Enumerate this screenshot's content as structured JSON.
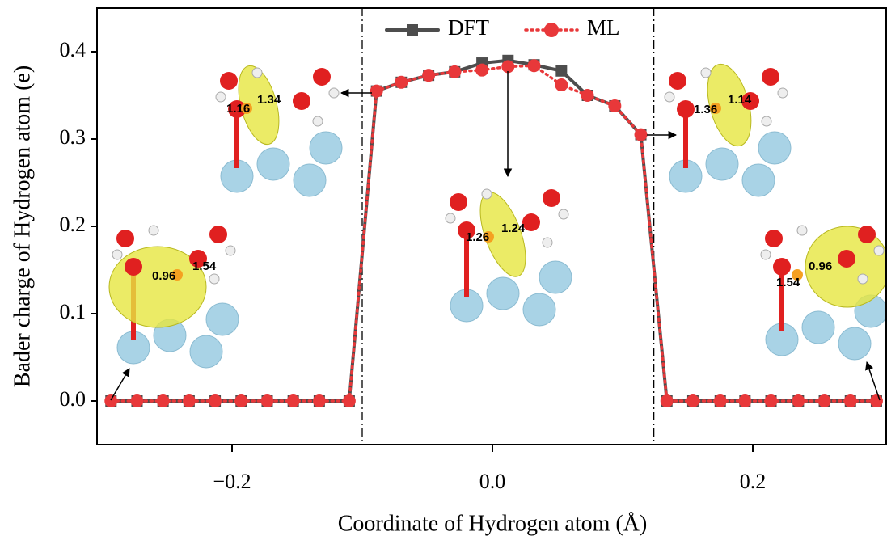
{
  "chart_data": {
    "type": "line",
    "x_label": "Coordinate of Hydrogen atom (Å)",
    "y_label": "Bader charge of Hydrogen atom (e)",
    "x": [
      -0.293,
      -0.273,
      -0.253,
      -0.233,
      -0.213,
      -0.193,
      -0.173,
      -0.153,
      -0.133,
      -0.11,
      -0.089,
      -0.07,
      -0.049,
      -0.029,
      -0.008,
      0.012,
      0.032,
      0.053,
      0.073,
      0.094,
      0.114,
      0.134,
      0.154,
      0.175,
      0.194,
      0.214,
      0.235,
      0.255,
      0.275,
      0.295
    ],
    "series": [
      {
        "name": "DFT",
        "color": "#4d4d4d",
        "marker": "square",
        "values": [
          0,
          0,
          0,
          0,
          0,
          0,
          0,
          0,
          0,
          0,
          0.355,
          0.365,
          0.373,
          0.377,
          0.387,
          0.39,
          0.385,
          0.378,
          0.35,
          0.338,
          0.305,
          0,
          0,
          0,
          0,
          0,
          0,
          0,
          0,
          0
        ]
      },
      {
        "name": "ML",
        "color": "#e8383a",
        "marker": "circle",
        "values": [
          0,
          0,
          0,
          0,
          0,
          0,
          0,
          0,
          0,
          0,
          0.355,
          0.365,
          0.373,
          0.377,
          0.379,
          0.383,
          0.384,
          0.362,
          0.35,
          0.338,
          0.305,
          0,
          0,
          0,
          0,
          0,
          0,
          0,
          0,
          0
        ]
      }
    ],
    "xlim": [
      -0.3,
      0.3
    ],
    "ylim": [
      -0.05,
      0.45
    ],
    "xticks": [
      {
        "value": -0.2,
        "label": "−0.2"
      },
      {
        "value": 0,
        "label": "0.0"
      },
      0.2
    ],
    "yticks": [
      {
        "value": 0,
        "label": "0.0"
      },
      0.1,
      0.2,
      0.3,
      0.4
    ],
    "reference_lines": [
      -0.1,
      0.124
    ],
    "legend": "top",
    "insets": [
      [
        "1.16",
        "1.34"
      ],
      [
        "0.96",
        "1.54"
      ],
      [
        "1.26",
        "1.24"
      ],
      [
        "1.36",
        "1.14"
      ],
      [
        "1.54",
        "0.96"
      ]
    ]
  }
}
